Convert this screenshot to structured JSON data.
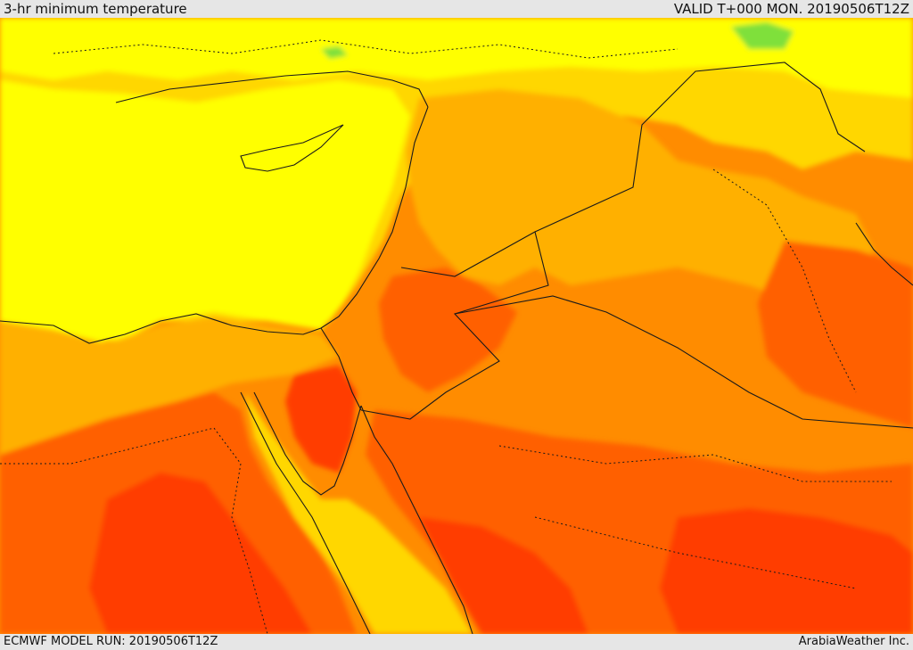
{
  "header": {
    "title": "3-hr minimum temperature",
    "valid_time": "VALID T+000 MON. 20190506T12Z"
  },
  "footer": {
    "model_run": "ECMWF MODEL RUN: 20190506T12Z",
    "credit": "ArabiaWeather Inc."
  },
  "palette": {
    "cold_green": "#7fe03a",
    "yellow": "#ffff00",
    "gold": "#ffd700",
    "light_orange": "#ffb000",
    "orange": "#ff8c00",
    "dark_orange": "#ff6000",
    "red_orange": "#ff3d00",
    "water_yellow": "#ffef00",
    "border": "#1a1a1a"
  }
}
